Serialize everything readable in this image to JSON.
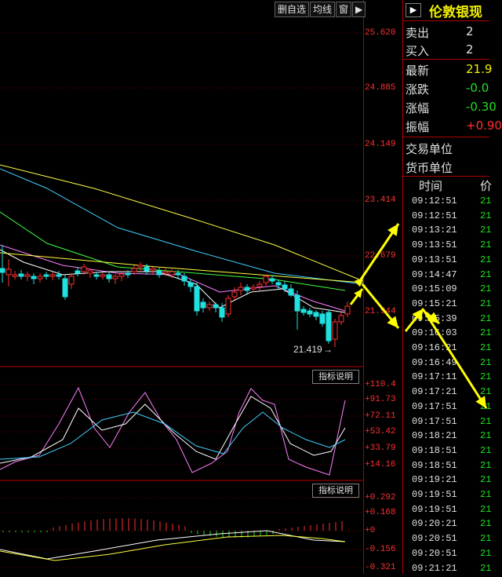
{
  "toolbar": {
    "buttons": [
      "删自选",
      "均线",
      "窗"
    ],
    "more_icon": "play-arrow-icon"
  },
  "price_axis": {
    "ticks": [
      "25.620",
      "24.885",
      "24.149",
      "23.414",
      "22.679",
      "21.944"
    ]
  },
  "low_marker": {
    "label": "21.419",
    "arrow": "→"
  },
  "indicator1": {
    "button_label": "指标说明",
    "ticks": [
      "+110.4",
      "+91.73",
      "+72.11",
      "+53.42",
      "+33.79",
      "+14.16"
    ]
  },
  "indicator2": {
    "button_label": "指标说明",
    "ticks": [
      "+0.292",
      "+0.168",
      "+0",
      "-0.156",
      "-0.321"
    ]
  },
  "panel": {
    "collapse_icon": "play-arrow-icon",
    "instrument": "伦敦银现",
    "quotes": [
      {
        "label": "卖出",
        "value": "2",
        "color": "#e0e0e0"
      },
      {
        "label": "买入",
        "value": "2",
        "color": "#e0e0e0"
      },
      {
        "label": "最新",
        "value": "21.9",
        "color": "#f0f000"
      },
      {
        "label": "涨跌",
        "value": "-0.0",
        "color": "#20e020"
      },
      {
        "label": "涨幅",
        "value": "-0.30",
        "color": "#20e020"
      },
      {
        "label": "振幅",
        "value": "+0.90",
        "color": "#ff3030"
      }
    ],
    "units": [
      {
        "label": "交易单位"
      },
      {
        "label": "货币单位"
      }
    ],
    "ticks_header": {
      "time": "时间",
      "price": "价"
    },
    "ticks": [
      {
        "time": "09:12:51",
        "price": "21"
      },
      {
        "time": "09:12:51",
        "price": "21"
      },
      {
        "time": "09:13:21",
        "price": "21"
      },
      {
        "time": "09:13:51",
        "price": "21"
      },
      {
        "time": "09:13:51",
        "price": "21"
      },
      {
        "time": "09:14:47",
        "price": "21"
      },
      {
        "time": "09:15:09",
        "price": "21"
      },
      {
        "time": "09:15:21",
        "price": "21"
      },
      {
        "time": "09:15:39",
        "price": "21"
      },
      {
        "time": "09:16:03",
        "price": "21"
      },
      {
        "time": "09:16:21",
        "price": "21"
      },
      {
        "time": "09:16:49",
        "price": "21"
      },
      {
        "time": "09:17:11",
        "price": "21"
      },
      {
        "time": "09:17:21",
        "price": "21"
      },
      {
        "time": "09:17:51",
        "price": "21"
      },
      {
        "time": "09:17:51",
        "price": "21"
      },
      {
        "time": "09:18:21",
        "price": "21"
      },
      {
        "time": "09:18:51",
        "price": "21"
      },
      {
        "time": "09:18:51",
        "price": "21"
      },
      {
        "time": "09:19:21",
        "price": "21"
      },
      {
        "time": "09:19:51",
        "price": "21"
      },
      {
        "time": "09:19:51",
        "price": "21"
      },
      {
        "time": "09:20:21",
        "price": "21"
      },
      {
        "time": "09:20:51",
        "price": "21"
      },
      {
        "time": "09:20:51",
        "price": "21"
      },
      {
        "time": "09:21:21",
        "price": "21"
      }
    ]
  },
  "colors": {
    "up": "#ff3030",
    "down": "#20e0e0",
    "grid": "#b00000",
    "annotation_arrow": "#ffff00"
  }
}
